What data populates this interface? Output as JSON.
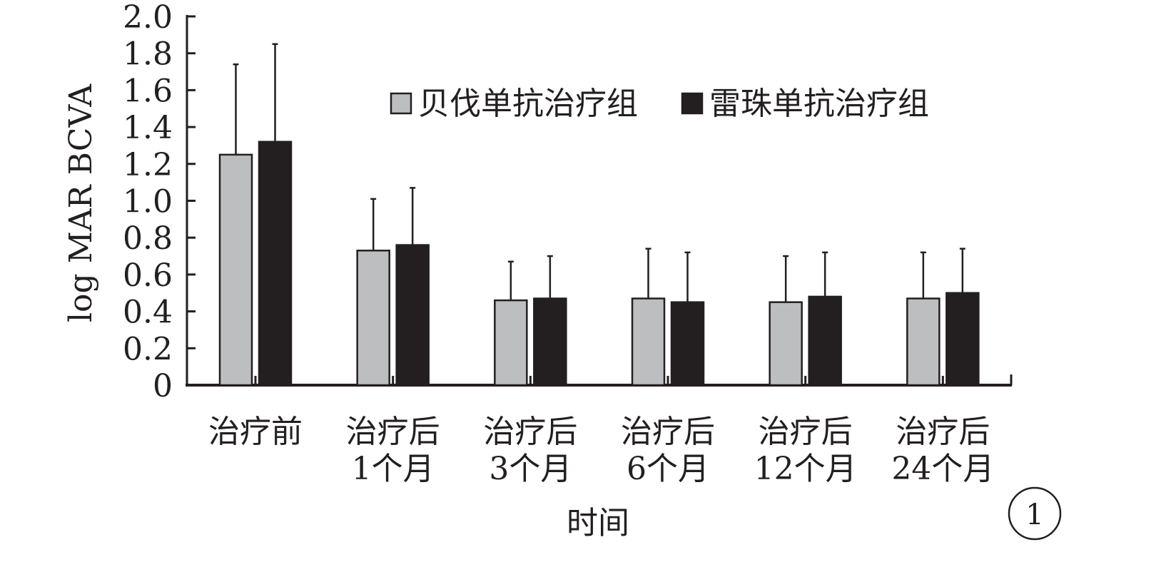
{
  "chart_data": {
    "type": "bar",
    "title": "",
    "xlabel": "时间",
    "ylabel": "log MAR BCVA",
    "ylim": [
      0,
      2.0
    ],
    "yticks": [
      "0",
      "0.2",
      "0.4",
      "0.6",
      "0.8",
      "1.0",
      "1.2",
      "1.4",
      "1.6",
      "1.8",
      "2.0"
    ],
    "categories": [
      [
        "治疗前"
      ],
      [
        "治疗后",
        "1个月"
      ],
      [
        "治疗后",
        "3个月"
      ],
      [
        "治疗后",
        "6个月"
      ],
      [
        "治疗后",
        "12个月"
      ],
      [
        "治疗后",
        "24个月"
      ]
    ],
    "series": [
      {
        "name": "贝伐单抗治疗组",
        "color": "#bcbec0",
        "values": [
          1.25,
          0.73,
          0.46,
          0.47,
          0.45,
          0.47
        ],
        "error": [
          0.49,
          0.28,
          0.21,
          0.27,
          0.25,
          0.25
        ]
      },
      {
        "name": "雷珠单抗治疗组",
        "color": "#231f20",
        "values": [
          1.32,
          0.76,
          0.47,
          0.45,
          0.48,
          0.5
        ],
        "error": [
          0.53,
          0.31,
          0.23,
          0.27,
          0.24,
          0.24
        ]
      }
    ],
    "legend_position": "top-right",
    "grid": false,
    "panel_label": "1"
  }
}
